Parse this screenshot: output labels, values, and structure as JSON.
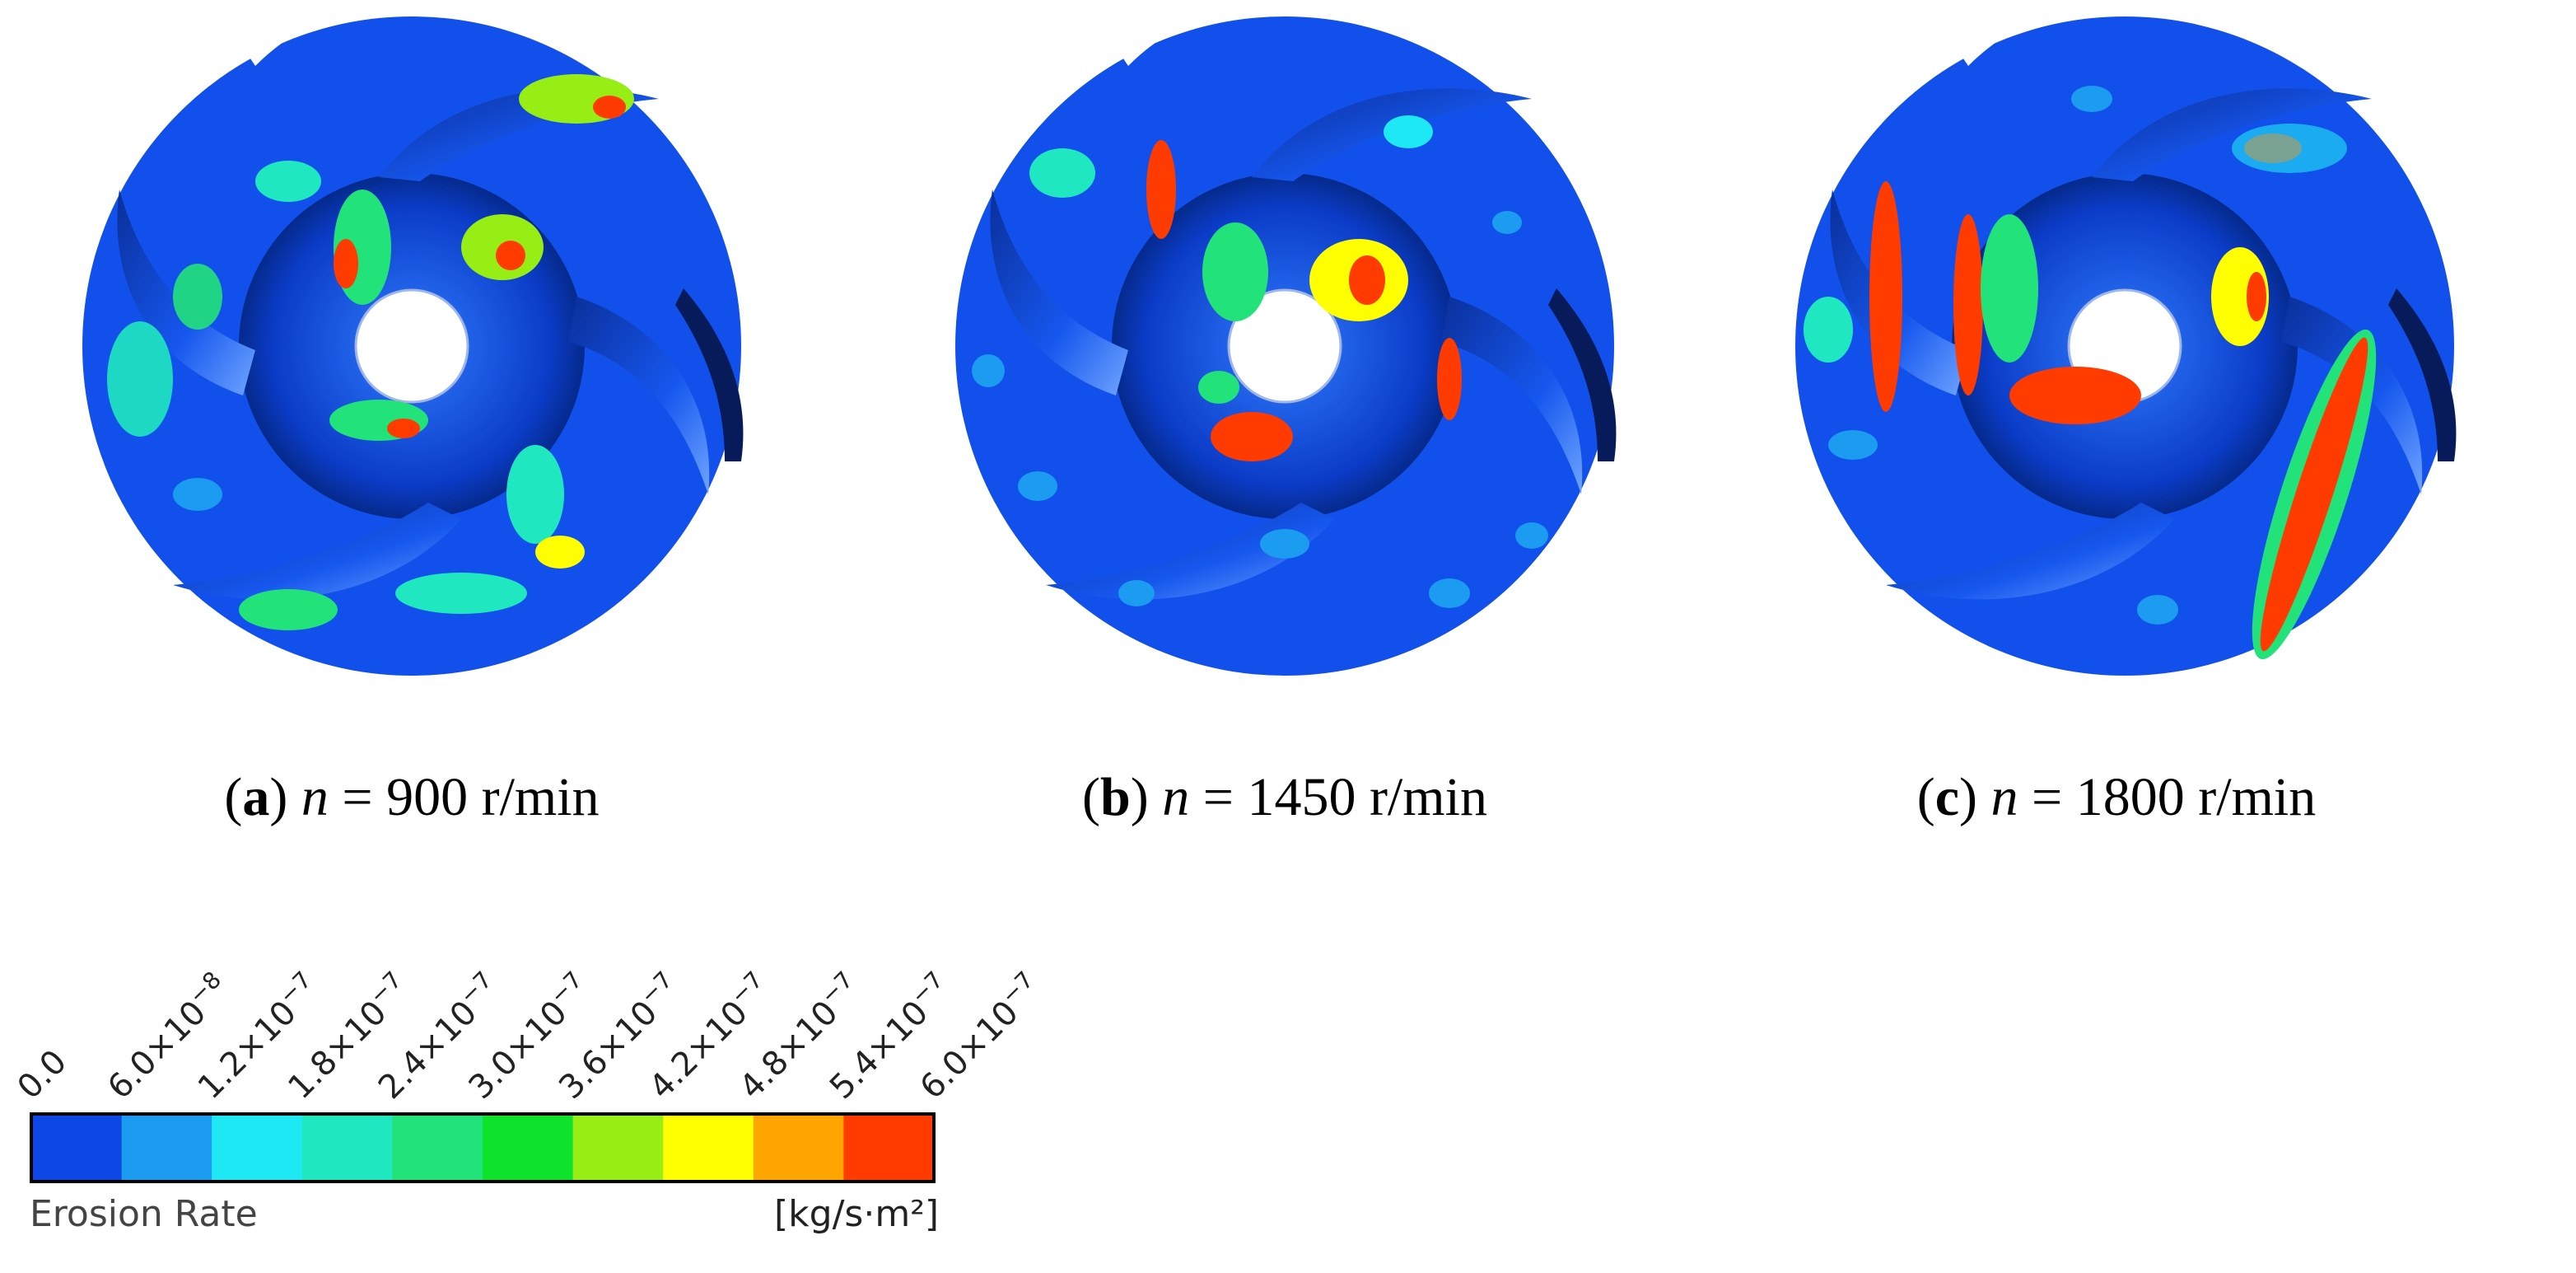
{
  "panels": [
    {
      "label": "a",
      "var": "n",
      "eq": "=",
      "value": "900",
      "unit": "r/min"
    },
    {
      "label": "b",
      "var": "n",
      "eq": "=",
      "value": "1450",
      "unit": "r/min"
    },
    {
      "label": "c",
      "var": "n",
      "eq": "=",
      "value": "1800",
      "unit": "r/min"
    }
  ],
  "legend": {
    "title": "Erosion Rate",
    "unit": "[kg/s·m²]",
    "ticks": [
      {
        "mant": "0.0",
        "exp": ""
      },
      {
        "mant": "6.0×10",
        "exp": "−8"
      },
      {
        "mant": "1.2×10",
        "exp": "−7"
      },
      {
        "mant": "1.8×10",
        "exp": "−7"
      },
      {
        "mant": "2.4×10",
        "exp": "−7"
      },
      {
        "mant": "3.0×10",
        "exp": "−7"
      },
      {
        "mant": "3.6×10",
        "exp": "−7"
      },
      {
        "mant": "4.2×10",
        "exp": "−7"
      },
      {
        "mant": "4.8×10",
        "exp": "−7"
      },
      {
        "mant": "5.4×10",
        "exp": "−7"
      },
      {
        "mant": "6.0×10",
        "exp": "−7"
      }
    ],
    "colors": [
      "#0d47e6",
      "#1b9cf0",
      "#1fe8f5",
      "#1fe8c0",
      "#22e27a",
      "#0fe22a",
      "#96ee14",
      "#ffff00",
      "#ffa500",
      "#ff3b00"
    ]
  }
}
